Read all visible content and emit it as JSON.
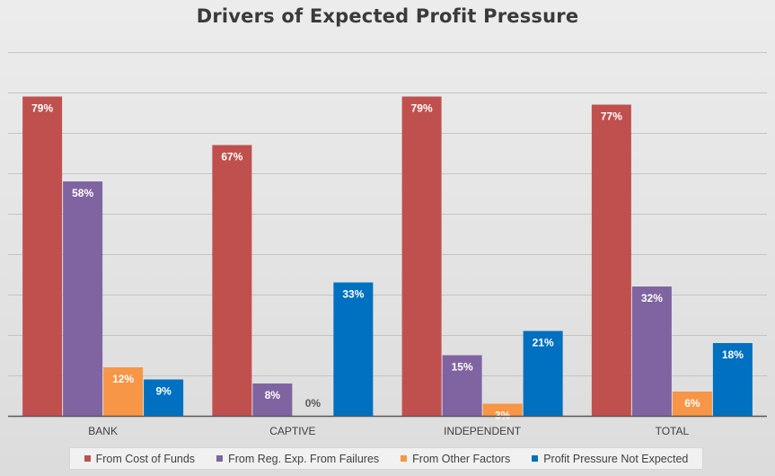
{
  "chart_data": {
    "type": "bar",
    "title": "Drivers of Expected Profit Pressure",
    "xlabel": "",
    "ylabel": "",
    "ylim": [
      0,
      0.9
    ],
    "grid": true,
    "legend_position": "bottom",
    "categories": [
      "BANK",
      "CAPTIVE",
      "INDEPENDENT",
      "TOTAL"
    ],
    "series": [
      {
        "name": "From Cost of Funds",
        "color": "#c0504d",
        "values": [
          0.79,
          0.67,
          0.79,
          0.77
        ],
        "labels": [
          "79%",
          "67%",
          "79%",
          "77%"
        ]
      },
      {
        "name": "From Reg. Exp. From Failures",
        "color": "#8064a2",
        "values": [
          0.58,
          0.08,
          0.15,
          0.32
        ],
        "labels": [
          "58%",
          "8%",
          "15%",
          "32%"
        ]
      },
      {
        "name": "From Other Factors",
        "color": "#f79646",
        "values": [
          0.12,
          0.0,
          0.03,
          0.06
        ],
        "labels": [
          "12%",
          "0%",
          "3%",
          "6%"
        ]
      },
      {
        "name": "Profit Pressure Not Expected",
        "color": "#0070c0",
        "values": [
          0.09,
          0.33,
          0.21,
          0.18
        ],
        "labels": [
          "9%",
          "33%",
          "21%",
          "18%"
        ]
      }
    ]
  }
}
